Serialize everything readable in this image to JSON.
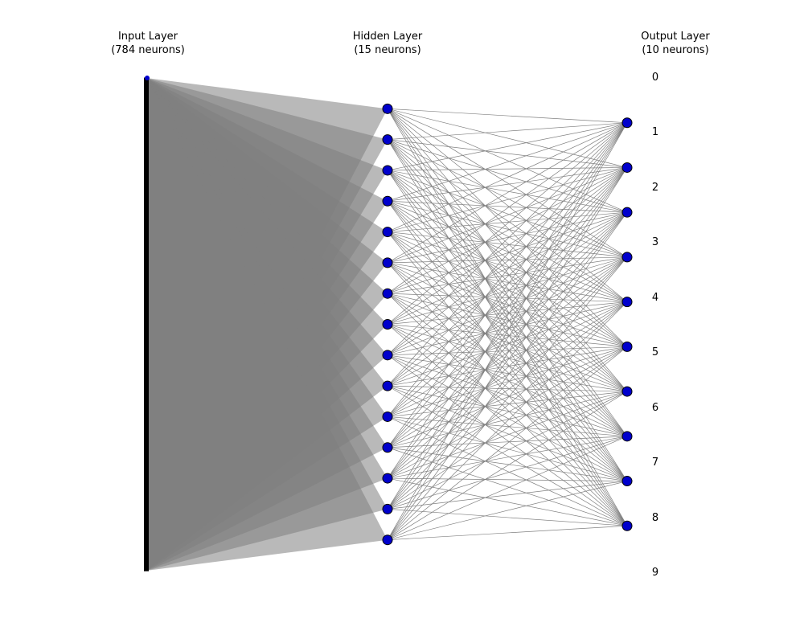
{
  "layers": [
    {
      "title": "Input Layer",
      "subtitle": "(784 neurons)",
      "neurons": 784
    },
    {
      "title": "Hidden Layer",
      "subtitle": "(15 neurons)",
      "neurons": 15
    },
    {
      "title": "Output Layer",
      "subtitle": "(10 neurons)",
      "neurons": 10
    }
  ],
  "output_labels": [
    "0",
    "1",
    "2",
    "3",
    "4",
    "5",
    "6",
    "7",
    "8",
    "9"
  ],
  "colors": {
    "neuron_fill": "#0000cc",
    "neuron_edge": "#000000",
    "connection": "#808080",
    "background": "#ffffff"
  }
}
